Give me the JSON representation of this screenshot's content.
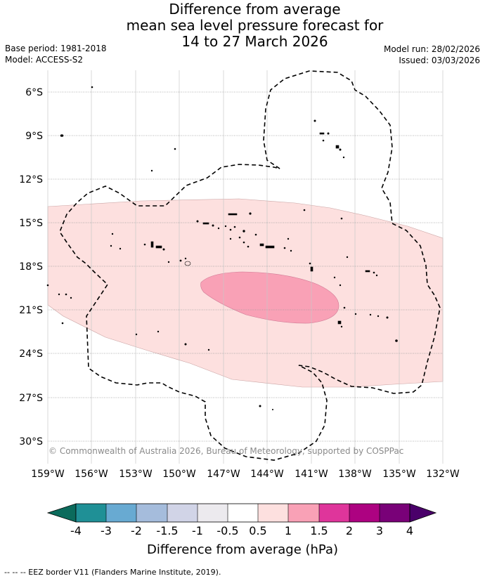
{
  "title": {
    "line1": "Difference from average",
    "line2": "mean sea level pressure forecast for",
    "line3": "14 to 27 March 2026"
  },
  "meta": {
    "base_period": "Base period: 1981-2018",
    "model": "Model: ACCESS-S2",
    "model_run": "Model run: 28/02/2026",
    "issued": "Issued: 03/03/2026"
  },
  "map": {
    "lat_labels": [
      "6°S",
      "9°S",
      "12°S",
      "15°S",
      "18°S",
      "21°S",
      "24°S",
      "27°S",
      "30°S"
    ],
    "lon_labels": [
      "159°W",
      "156°W",
      "153°W",
      "150°W",
      "147°W",
      "144°W",
      "141°W",
      "138°W",
      "135°W",
      "132°W"
    ],
    "lat_range": [
      -31.5,
      -4
    ],
    "lon_range": [
      -159,
      -132
    ],
    "copyright": "© Commonwealth of Australia 2026, Bureau of Meteorology, supported by COSPPac",
    "anomaly_zones": [
      {
        "name": "0.5 to 1 hPa",
        "color": "#fde0df"
      },
      {
        "name": "1 to 1.5 hPa",
        "color": "#f9a1b6"
      }
    ]
  },
  "colorbar": {
    "label": "Difference from average (hPa)",
    "ticks": [
      "-4",
      "-3",
      "-2",
      "-1.5",
      "-1",
      "-0.5",
      "0.5",
      "1",
      "1.5",
      "2",
      "3",
      "4"
    ],
    "colors": [
      "#1f9096",
      "#68aad2",
      "#a5bcdc",
      "#d1d4e7",
      "#eceaee",
      "#ffffff",
      "#fde0df",
      "#f9a1b6",
      "#df359b",
      "#ad0281",
      "#790178"
    ],
    "under_color": "#0b6b5c",
    "over_color": "#4a006a"
  },
  "footer": "-- -- -- EEZ border V11 (Flanders Marine Institute, 2019)."
}
